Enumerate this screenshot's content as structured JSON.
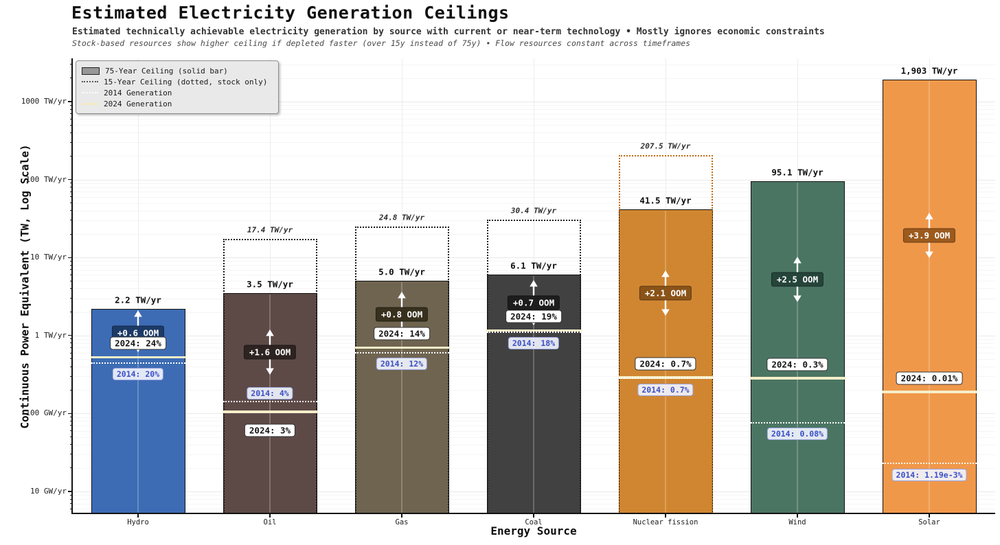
{
  "page": {
    "title": "Estimated Electricity Generation Ceilings",
    "subtitle": "Estimated technically achievable electricity generation by source with current or near-term technology • Mostly ignores economic constraints",
    "note": "Stock-based resources show higher ceiling if depleted faster (over 15y instead of 75y) • Flow resources constant across timeframes"
  },
  "legend": {
    "items": [
      {
        "swatch": "solid-bar",
        "label": "75-Year Ceiling (solid bar)"
      },
      {
        "swatch": "dotted-ceiling",
        "label": "15-Year Ceiling (dotted, stock only)"
      },
      {
        "swatch": "dotted-2014-line",
        "label": "2014 Generation"
      },
      {
        "swatch": "solid-2024-line",
        "label": "2024 Generation"
      }
    ]
  },
  "axes": {
    "x_title": "Energy Source",
    "y_title": "Continuous Power Equivalent (TW, Log Scale)",
    "y_tick_labels": [
      "1000 TW/yr",
      "100 TW/yr",
      "10 TW/yr",
      "1 TW/yr",
      "100 GW/yr",
      "10 GW/yr"
    ],
    "y_tick_values_tw": [
      1000,
      100,
      10,
      1,
      0.1,
      0.01
    ]
  },
  "chart_data": {
    "type": "bar",
    "y_scale": "log",
    "y_unit": "TW continuous power equivalent",
    "ylim_tw": [
      0.005,
      3600
    ],
    "grid": "on",
    "legend_position": "upper-left",
    "categories": [
      "Hydro",
      "Oil",
      "Gas",
      "Coal",
      "Nuclear fission",
      "Wind",
      "Solar"
    ],
    "bars": [
      {
        "name": "Hydro",
        "color": "#3d6cb4",
        "ceiling_75y_tw": 2.2,
        "ceiling_75y_label": "2.2 TW/yr",
        "ceiling_15y_tw": null,
        "ceiling_15y_label": null,
        "ceiling_15y_color": null,
        "gen_2024_tw": 0.528,
        "share_2024_pct": 24,
        "label_2024": "2024: 24%",
        "gen_2014_tw": 0.44,
        "share_2014_pct": 20,
        "label_2014": "2014: 20%",
        "oom_label": "+0.6 OOM",
        "oom_badge_color": "#1c3a67"
      },
      {
        "name": "Oil",
        "color": "#5d4a47",
        "ceiling_75y_tw": 3.5,
        "ceiling_75y_label": "3.5 TW/yr",
        "ceiling_15y_tw": 17.4,
        "ceiling_15y_label": "17.4 TW/yr",
        "ceiling_15y_color": "#1a1a1a",
        "gen_2024_tw": 0.105,
        "share_2024_pct": 3,
        "label_2024": "2024: 3%",
        "gen_2014_tw": 0.14,
        "share_2014_pct": 4,
        "label_2014": "2014: 4%",
        "oom_label": "+1.6 OOM",
        "oom_badge_color": "#2d2422"
      },
      {
        "name": "Gas",
        "color": "#6f6450",
        "ceiling_75y_tw": 5.0,
        "ceiling_75y_label": "5.0 TW/yr",
        "ceiling_15y_tw": 24.8,
        "ceiling_15y_label": "24.8 TW/yr",
        "ceiling_15y_color": "#1a1a1a",
        "gen_2024_tw": 0.7,
        "share_2024_pct": 14,
        "label_2024": "2024: 14%",
        "gen_2014_tw": 0.6,
        "share_2014_pct": 12,
        "label_2014": "2014: 12%",
        "oom_label": "+0.8 OOM",
        "oom_badge_color": "#37301d"
      },
      {
        "name": "Coal",
        "color": "#414141",
        "ceiling_75y_tw": 6.1,
        "ceiling_75y_label": "6.1 TW/yr",
        "ceiling_15y_tw": 30.4,
        "ceiling_15y_label": "30.4 TW/yr",
        "ceiling_15y_color": "#1a1a1a",
        "gen_2024_tw": 1.16,
        "share_2024_pct": 19,
        "label_2024": "2024: 19%",
        "gen_2014_tw": 1.1,
        "share_2014_pct": 18,
        "label_2014": "2014: 18%",
        "oom_label": "+0.7 OOM",
        "oom_badge_color": "#1d1d1d"
      },
      {
        "name": "Nuclear fission",
        "color": "#d08631",
        "ceiling_75y_tw": 41.5,
        "ceiling_75y_label": "41.5 TW/yr",
        "ceiling_15y_tw": 207.5,
        "ceiling_15y_label": "207.5 TW/yr",
        "ceiling_15y_color": "#c2690f",
        "gen_2024_tw": 0.29,
        "share_2024_pct": 0.7,
        "label_2024": "2024: 0.7%",
        "gen_2014_tw": 0.28,
        "share_2014_pct": 0.7,
        "label_2014": "2014: 0.7%",
        "oom_label": "+2.1 OOM",
        "oom_badge_color": "#8a5318"
      },
      {
        "name": "Wind",
        "color": "#4b7563",
        "ceiling_75y_tw": 95.1,
        "ceiling_75y_label": "95.1 TW/yr",
        "ceiling_15y_tw": null,
        "ceiling_15y_label": null,
        "ceiling_15y_color": null,
        "gen_2024_tw": 0.285,
        "share_2024_pct": 0.3,
        "label_2024": "2024: 0.3%",
        "gen_2014_tw": 0.076,
        "share_2014_pct": 0.08,
        "label_2014": "2014: 0.08%",
        "oom_label": "+2.5 OOM",
        "oom_badge_color": "#25443a"
      },
      {
        "name": "Solar",
        "color": "#f0984a",
        "ceiling_75y_tw": 1903,
        "ceiling_75y_label": "1,903 TW/yr",
        "ceiling_15y_tw": null,
        "ceiling_15y_label": null,
        "ceiling_15y_color": null,
        "gen_2024_tw": 0.19,
        "share_2024_pct": 0.01,
        "label_2024": "2024: 0.01%",
        "gen_2014_tw": 0.0226,
        "share_2014_pct": 0.00119,
        "label_2014": "2014: 1.19e-3%",
        "oom_label": "+3.9 OOM",
        "oom_badge_color": "#9c5a1d"
      }
    ]
  }
}
